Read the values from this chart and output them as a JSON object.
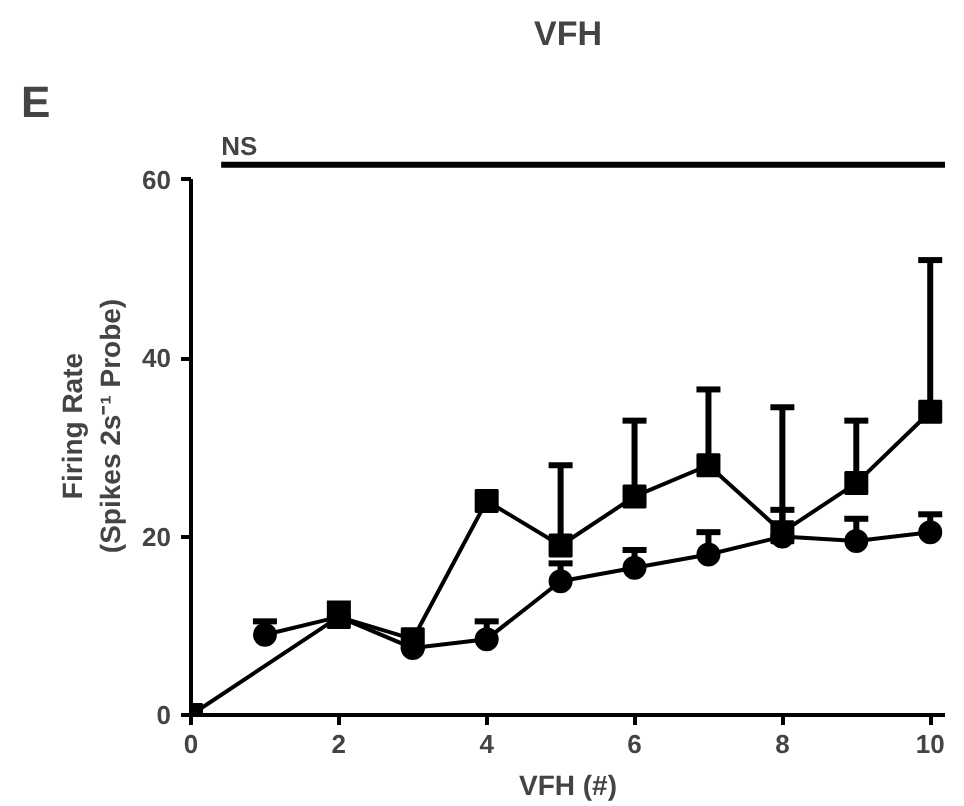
{
  "chart_data": {
    "type": "line",
    "title": "VFH",
    "xlabel": "VFH (#)",
    "ylabel": "Firing Rate\n(Spikes 2s⁻¹ Probe)",
    "annotations": [
      "E",
      "NS"
    ],
    "xlim": [
      0,
      10.2
    ],
    "ylim": [
      0,
      60
    ],
    "xticks": [
      0,
      2,
      4,
      6,
      8,
      10
    ],
    "yticks": [
      0,
      20,
      40,
      60
    ],
    "grid": false,
    "line_style": "solid",
    "series": [
      {
        "color": "#000000",
        "marker": "square",
        "x": [
          0,
          2,
          3,
          4,
          5,
          6,
          7,
          8,
          9,
          10
        ],
        "values": [
          0,
          11,
          8.5,
          24,
          19,
          24.5,
          28,
          20.5,
          26,
          34
        ],
        "errors": [
          null,
          null,
          null,
          null,
          [
            19,
            28
          ],
          [
            24.5,
            33
          ],
          [
            28,
            36.5
          ],
          [
            20.5,
            34.5
          ],
          [
            26,
            33
          ],
          [
            34,
            51
          ]
        ]
      },
      {
        "color": "#000000",
        "marker": "circle",
        "x": [
          1,
          2,
          3,
          4,
          5,
          6,
          7,
          8,
          9,
          10
        ],
        "values": [
          9,
          11,
          7.5,
          8.5,
          15,
          16.5,
          18,
          20,
          19.5,
          20.5
        ],
        "errors": [
          [
            9,
            10.5
          ],
          [
            11,
            12.5
          ],
          null,
          [
            8.5,
            10.5
          ],
          [
            15,
            17
          ],
          [
            16.5,
            18.5
          ],
          [
            18,
            20.5
          ],
          [
            20,
            23
          ],
          [
            19.5,
            22
          ],
          [
            20.5,
            22.5
          ]
        ]
      }
    ]
  }
}
